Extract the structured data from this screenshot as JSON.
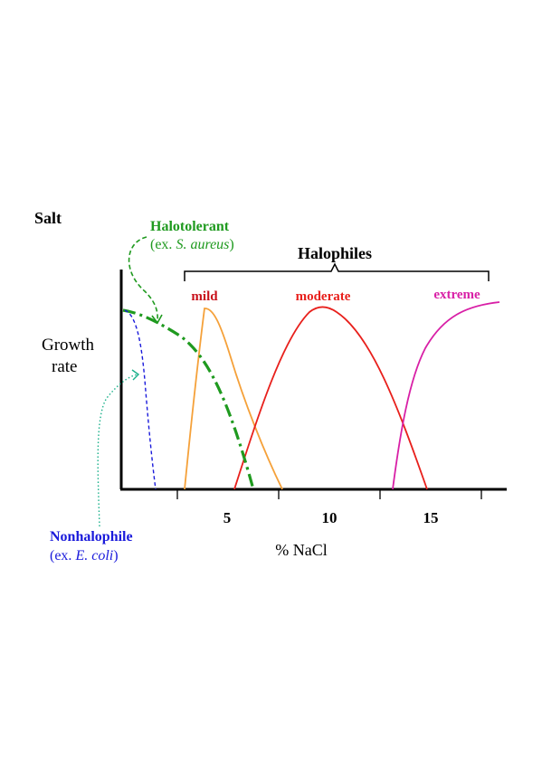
{
  "title": "Salt",
  "ylabel": {
    "line1": "Growth",
    "line2": "rate"
  },
  "xlabel": "% NaCl",
  "bracket_label": "Halophiles",
  "halotolerant": {
    "name": "Halotolerant",
    "example_prefix": "(ex. ",
    "example_species": "S. aureus",
    "example_suffix": ")"
  },
  "nonhalophile": {
    "name": "Nonhalophile",
    "example_prefix": "(ex. ",
    "example_species": "E. coli",
    "example_suffix": ")"
  },
  "curve_labels": {
    "mild": "mild",
    "moderate": "moderate",
    "extreme": "extreme"
  },
  "colors": {
    "halotolerant": "#1f9a1f",
    "nonhalophile": "#1a1adb",
    "mild": "#f5a13a",
    "moderate": "#e8201c",
    "extreme": "#d81fa6",
    "axis": "#000000"
  },
  "chart_data": {
    "type": "line",
    "xlabel": "% NaCl",
    "ylabel": "Growth rate",
    "xticks": [
      "5",
      "10",
      "15"
    ],
    "xlim": [
      0,
      19
    ],
    "ylim": [
      0,
      1
    ],
    "series": [
      {
        "name": "Nonhalophile",
        "style": "dashed",
        "x": [
          0,
          0.4,
          0.8,
          1.2,
          1.6
        ],
        "y": [
          1,
          0.9,
          0.6,
          0.3,
          0
        ]
      },
      {
        "name": "Halotolerant",
        "style": "dash-dot",
        "x": [
          0,
          1,
          2,
          3,
          4,
          5,
          6.3
        ],
        "y": [
          0.98,
          0.97,
          0.9,
          0.8,
          0.6,
          0.35,
          0
        ]
      },
      {
        "name": "mild",
        "style": "solid",
        "x": [
          0.8,
          2,
          3,
          4,
          5,
          6,
          7.8
        ],
        "y": [
          0,
          0.6,
          0.9,
          0.99,
          0.85,
          0.55,
          0
        ]
      },
      {
        "name": "moderate",
        "style": "solid",
        "x": [
          5.5,
          7,
          8.5,
          9.8,
          11.5,
          13,
          15
        ],
        "y": [
          0,
          0.55,
          0.9,
          1,
          0.87,
          0.6,
          0
        ]
      },
      {
        "name": "extreme",
        "style": "solid",
        "x": [
          13.3,
          14,
          15,
          16,
          17,
          18.5
        ],
        "y": [
          0,
          0.6,
          0.82,
          0.92,
          0.97,
          1.01
        ]
      }
    ]
  }
}
